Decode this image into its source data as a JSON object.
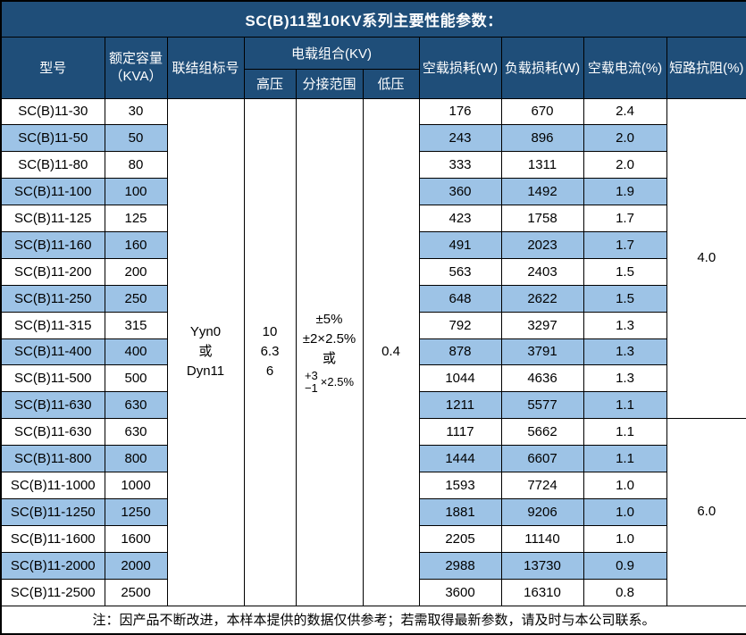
{
  "title": "SC(B)11型10KV系列主要性能参数：",
  "colors": {
    "header_bg": "#1f4e79",
    "stripe_bg": "#9dc3e6",
    "border": "#000000",
    "title_text": "#ffffff"
  },
  "header": {
    "model": "型号",
    "capacity_line1": "额定容量",
    "capacity_line2": "（KVA）",
    "connection": "联结组标号",
    "voltage_group": "电载组合(KV)",
    "high_voltage": "高压",
    "tap_range": "分接范围",
    "low_voltage": "低压",
    "no_load_loss": "空载损耗(W)",
    "load_loss": "负载损耗(W)",
    "no_load_current": "空载电流(%)",
    "short_circuit_impedance": "短路抗阻(%)"
  },
  "merged": {
    "connection_lines": [
      "Yyn0",
      "或",
      "Dyn11"
    ],
    "high_voltage_lines": [
      "10",
      "6.3",
      "6"
    ],
    "tap_lines": [
      "±5%",
      "±2×2.5%",
      "或"
    ],
    "tap_stack": {
      "top": "+3",
      "bottom": "−1",
      "suffix": "×2.5%"
    },
    "low_voltage": "0.4",
    "impedance_groups": [
      {
        "value": "4.0",
        "rows": 12
      },
      {
        "value": "6.0",
        "rows": 7
      }
    ]
  },
  "rows": [
    {
      "model": "SC(B)11-30",
      "capacity": "30",
      "no_load_loss": "176",
      "load_loss": "670",
      "no_load_current": "2.4"
    },
    {
      "model": "SC(B)11-50",
      "capacity": "50",
      "no_load_loss": "243",
      "load_loss": "896",
      "no_load_current": "2.0"
    },
    {
      "model": "SC(B)11-80",
      "capacity": "80",
      "no_load_loss": "333",
      "load_loss": "1311",
      "no_load_current": "2.0"
    },
    {
      "model": "SC(B)11-100",
      "capacity": "100",
      "no_load_loss": "360",
      "load_loss": "1492",
      "no_load_current": "1.9"
    },
    {
      "model": "SC(B)11-125",
      "capacity": "125",
      "no_load_loss": "423",
      "load_loss": "1758",
      "no_load_current": "1.7"
    },
    {
      "model": "SC(B)11-160",
      "capacity": "160",
      "no_load_loss": "491",
      "load_loss": "2023",
      "no_load_current": "1.7"
    },
    {
      "model": "SC(B)11-200",
      "capacity": "200",
      "no_load_loss": "563",
      "load_loss": "2403",
      "no_load_current": "1.5"
    },
    {
      "model": "SC(B)11-250",
      "capacity": "250",
      "no_load_loss": "648",
      "load_loss": "2622",
      "no_load_current": "1.5"
    },
    {
      "model": "SC(B)11-315",
      "capacity": "315",
      "no_load_loss": "792",
      "load_loss": "3297",
      "no_load_current": "1.3"
    },
    {
      "model": "SC(B)11-400",
      "capacity": "400",
      "no_load_loss": "878",
      "load_loss": "3791",
      "no_load_current": "1.3"
    },
    {
      "model": "SC(B)11-500",
      "capacity": "500",
      "no_load_loss": "1044",
      "load_loss": "4636",
      "no_load_current": "1.3"
    },
    {
      "model": "SC(B)11-630",
      "capacity": "630",
      "no_load_loss": "1211",
      "load_loss": "5577",
      "no_load_current": "1.1"
    },
    {
      "model": "SC(B)11-630",
      "capacity": "630",
      "no_load_loss": "1117",
      "load_loss": "5662",
      "no_load_current": "1.1"
    },
    {
      "model": "SC(B)11-800",
      "capacity": "800",
      "no_load_loss": "1444",
      "load_loss": "6607",
      "no_load_current": "1.1"
    },
    {
      "model": "SC(B)11-1000",
      "capacity": "1000",
      "no_load_loss": "1593",
      "load_loss": "7724",
      "no_load_current": "1.0"
    },
    {
      "model": "SC(B)11-1250",
      "capacity": "1250",
      "no_load_loss": "1881",
      "load_loss": "9206",
      "no_load_current": "1.0"
    },
    {
      "model": "SC(B)11-1600",
      "capacity": "1600",
      "no_load_loss": "2205",
      "load_loss": "11140",
      "no_load_current": "1.0"
    },
    {
      "model": "SC(B)11-2000",
      "capacity": "2000",
      "no_load_loss": "2988",
      "load_loss": "13730",
      "no_load_current": "0.9"
    },
    {
      "model": "SC(B)11-2500",
      "capacity": "2500",
      "no_load_loss": "3600",
      "load_loss": "16310",
      "no_load_current": "0.8"
    }
  ],
  "footer": "注：因产品不断改进，本样本提供的数据仅供参考；若需取得最新参数，请及时与本公司联系。"
}
